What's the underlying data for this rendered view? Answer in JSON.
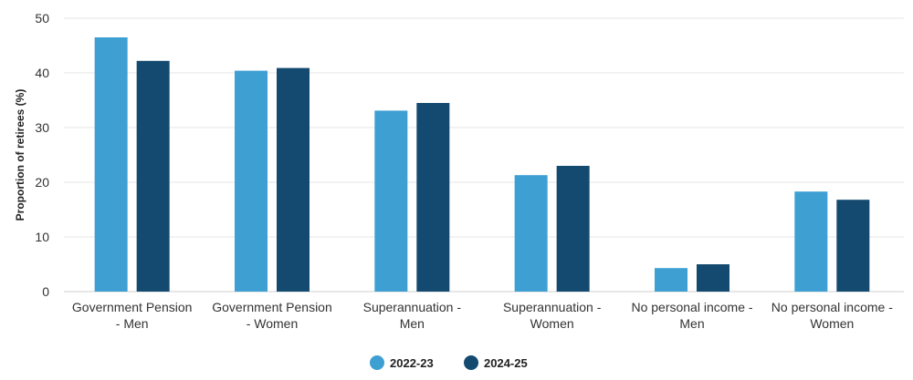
{
  "chart_data": {
    "type": "bar",
    "title": "",
    "xlabel": "",
    "ylabel": "Proportion of retirees (%)",
    "ylim": [
      0,
      50
    ],
    "yticks": [
      0,
      10,
      20,
      30,
      40,
      50
    ],
    "grid": true,
    "legend_position": "bottom",
    "categories": [
      [
        "Government Pension",
        "- Men"
      ],
      [
        "Government Pension",
        "- Women"
      ],
      [
        "Superannuation -",
        "Men"
      ],
      [
        "Superannuation -",
        "Women"
      ],
      [
        "No personal income -",
        "Men"
      ],
      [
        "No personal income -",
        "Women"
      ]
    ],
    "series": [
      {
        "name": "2022-23",
        "color": "#3e9fd3",
        "values": [
          46.5,
          40.4,
          33.1,
          21.3,
          4.3,
          18.3
        ]
      },
      {
        "name": "2024-25",
        "color": "#144a70",
        "values": [
          42.2,
          40.9,
          34.5,
          23.0,
          5.0,
          16.8
        ]
      }
    ]
  }
}
